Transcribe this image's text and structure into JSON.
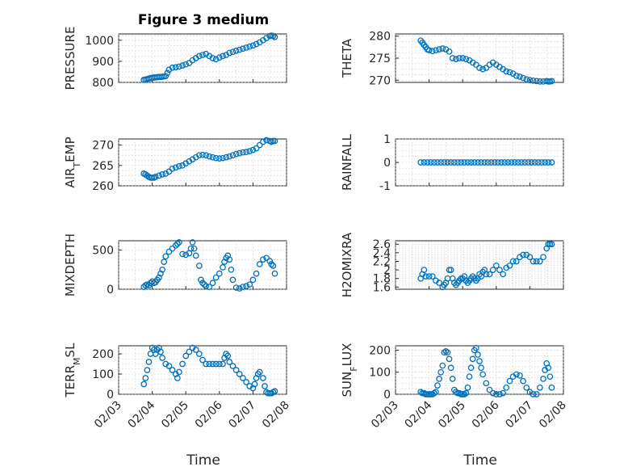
{
  "figure": {
    "title": "Figure 3 medium",
    "xlabel": "Time",
    "marker_color": "#0072BD",
    "x_ticks": [
      "02/03",
      "02/04",
      "02/05",
      "02/06",
      "02/07",
      "02/08"
    ]
  },
  "chart_data": [
    {
      "type": "scatter",
      "ylabel": "PRESSURE",
      "ylabel_sub": "",
      "xlim": [
        0,
        5
      ],
      "ylim": [
        800,
        1030
      ],
      "yticks": [
        800,
        900,
        1000
      ],
      "title": "Figure 3 medium",
      "x": [
        0.75,
        0.8,
        0.85,
        0.9,
        0.95,
        1.0,
        1.05,
        1.1,
        1.15,
        1.2,
        1.25,
        1.3,
        1.35,
        1.4,
        1.45,
        1.5,
        1.6,
        1.7,
        1.8,
        1.9,
        2.0,
        2.1,
        2.2,
        2.3,
        2.4,
        2.5,
        2.6,
        2.7,
        2.8,
        2.9,
        3.0,
        3.1,
        3.2,
        3.3,
        3.4,
        3.5,
        3.6,
        3.7,
        3.8,
        3.9,
        4.0,
        4.1,
        4.2,
        4.3,
        4.4,
        4.5,
        4.55,
        4.6,
        4.65
      ],
      "y": [
        812,
        814,
        816,
        818,
        820,
        822,
        823,
        824,
        825,
        826,
        826,
        827,
        828,
        830,
        845,
        860,
        870,
        872,
        875,
        880,
        885,
        892,
        905,
        915,
        925,
        930,
        935,
        925,
        915,
        910,
        918,
        925,
        930,
        940,
        945,
        950,
        955,
        960,
        965,
        970,
        975,
        982,
        990,
        1000,
        1010,
        1020,
        1022,
        1020,
        1015
      ]
    },
    {
      "type": "scatter",
      "ylabel": "THETA",
      "ylabel_sub": "",
      "xlim": [
        0,
        5
      ],
      "ylim": [
        269.5,
        280.5
      ],
      "yticks": [
        270,
        275,
        280
      ],
      "x": [
        0.75,
        0.8,
        0.85,
        0.9,
        0.95,
        1.0,
        1.1,
        1.2,
        1.3,
        1.4,
        1.5,
        1.6,
        1.7,
        1.8,
        1.9,
        2.0,
        2.1,
        2.2,
        2.3,
        2.4,
        2.5,
        2.6,
        2.7,
        2.8,
        2.9,
        3.0,
        3.1,
        3.2,
        3.3,
        3.4,
        3.5,
        3.6,
        3.7,
        3.8,
        3.9,
        4.0,
        4.1,
        4.2,
        4.3,
        4.4,
        4.5,
        4.55,
        4.6,
        4.65
      ],
      "y": [
        279,
        278.5,
        278,
        277.5,
        277,
        276.8,
        276.6,
        276.8,
        277,
        277.2,
        277,
        276.5,
        275,
        274.8,
        275,
        275,
        274.8,
        274.5,
        274,
        273.5,
        272.8,
        272.5,
        272.8,
        273.5,
        274,
        273.5,
        273,
        272.5,
        272,
        271.8,
        271.5,
        271,
        270.8,
        270.5,
        270.2,
        270,
        269.9,
        269.8,
        269.7,
        269.7,
        269.8,
        269.7,
        269.7,
        269.8
      ]
    },
    {
      "type": "scatter",
      "ylabel": "AIR",
      "ylabel_sub": "T",
      "ylabel_rest": "EMP",
      "xlim": [
        0,
        5
      ],
      "ylim": [
        260,
        271.5
      ],
      "yticks": [
        260,
        265,
        270
      ],
      "x": [
        0.75,
        0.8,
        0.85,
        0.9,
        0.95,
        1.0,
        1.05,
        1.1,
        1.2,
        1.3,
        1.4,
        1.5,
        1.6,
        1.7,
        1.8,
        1.9,
        2.0,
        2.1,
        2.2,
        2.3,
        2.4,
        2.5,
        2.6,
        2.7,
        2.8,
        2.9,
        3.0,
        3.1,
        3.2,
        3.3,
        3.4,
        3.5,
        3.6,
        3.7,
        3.8,
        3.9,
        4.0,
        4.1,
        4.2,
        4.3,
        4.4,
        4.5,
        4.55,
        4.6,
        4.65
      ],
      "y": [
        263,
        262.8,
        262.5,
        262.2,
        262,
        262,
        262,
        262.2,
        262.5,
        262.8,
        263,
        263.5,
        264.2,
        264.5,
        264.8,
        265,
        265.5,
        266,
        266.5,
        267,
        267.5,
        267.6,
        267.5,
        267.2,
        267,
        266.8,
        266.7,
        266.8,
        267,
        267.2,
        267.5,
        267.8,
        268,
        268.2,
        268.3,
        268.5,
        268.8,
        269.2,
        270,
        270.8,
        271.2,
        271,
        270.8,
        271,
        271
      ]
    },
    {
      "type": "scatter",
      "ylabel": "RAINFALL",
      "ylabel_sub": "",
      "xlim": [
        0,
        5
      ],
      "ylim": [
        -1,
        1
      ],
      "yticks": [
        -1,
        0,
        1
      ],
      "x": [
        0.75,
        0.85,
        0.95,
        1.05,
        1.15,
        1.25,
        1.35,
        1.45,
        1.55,
        1.65,
        1.75,
        1.85,
        1.95,
        2.05,
        2.15,
        2.25,
        2.35,
        2.45,
        2.55,
        2.65,
        2.75,
        2.85,
        2.95,
        3.05,
        3.15,
        3.25,
        3.35,
        3.45,
        3.55,
        3.65,
        3.75,
        3.85,
        3.95,
        4.05,
        4.15,
        4.25,
        4.35,
        4.45,
        4.55,
        4.65
      ],
      "y": [
        0,
        0,
        0,
        0,
        0,
        0,
        0,
        0,
        0,
        0,
        0,
        0,
        0,
        0,
        0,
        0,
        0,
        0,
        0,
        0,
        0,
        0,
        0,
        0,
        0,
        0,
        0,
        0,
        0,
        0,
        0,
        0,
        0,
        0,
        0,
        0,
        0,
        0,
        0,
        0
      ]
    },
    {
      "type": "scatter",
      "ylabel": "MIXDEPTH",
      "ylabel_sub": "",
      "xlim": [
        0,
        5
      ],
      "ylim": [
        0,
        620
      ],
      "yticks": [
        0,
        500
      ],
      "x": [
        0.75,
        0.8,
        0.85,
        0.9,
        0.95,
        1.0,
        1.05,
        1.1,
        1.15,
        1.2,
        1.25,
        1.3,
        1.35,
        1.4,
        1.5,
        1.6,
        1.7,
        1.75,
        1.8,
        1.9,
        2.0,
        2.1,
        2.15,
        2.2,
        2.25,
        2.3,
        2.4,
        2.45,
        2.5,
        2.55,
        2.6,
        2.7,
        2.8,
        2.9,
        3.0,
        3.1,
        3.15,
        3.2,
        3.25,
        3.3,
        3.35,
        3.4,
        3.5,
        3.6,
        3.7,
        3.8,
        3.9,
        4.0,
        4.1,
        4.2,
        4.3,
        4.4,
        4.5,
        4.55,
        4.6,
        4.65
      ],
      "y": [
        30,
        50,
        60,
        50,
        80,
        100,
        80,
        90,
        120,
        150,
        200,
        250,
        350,
        420,
        480,
        520,
        560,
        580,
        600,
        450,
        440,
        460,
        520,
        600,
        520,
        430,
        300,
        120,
        80,
        60,
        40,
        30,
        80,
        150,
        200,
        280,
        350,
        400,
        430,
        380,
        250,
        120,
        20,
        10,
        30,
        40,
        60,
        120,
        200,
        320,
        380,
        400,
        360,
        320,
        300,
        200
      ]
    },
    {
      "type": "scatter",
      "ylabel": "H2OMIXRA",
      "ylabel_sub": "",
      "xlim": [
        0,
        5
      ],
      "ylim": [
        1.55,
        2.68
      ],
      "yticks": [
        1.6,
        1.8,
        2,
        2.2,
        2.4,
        2.6
      ],
      "x": [
        0.75,
        0.8,
        0.85,
        0.9,
        1.0,
        1.1,
        1.2,
        1.3,
        1.4,
        1.45,
        1.5,
        1.55,
        1.6,
        1.65,
        1.7,
        1.75,
        1.8,
        1.85,
        1.9,
        1.95,
        2.0,
        2.05,
        2.1,
        2.15,
        2.2,
        2.25,
        2.3,
        2.35,
        2.4,
        2.45,
        2.5,
        2.55,
        2.6,
        2.65,
        2.7,
        2.8,
        2.9,
        3.0,
        3.1,
        3.2,
        3.3,
        3.4,
        3.5,
        3.6,
        3.7,
        3.8,
        3.9,
        4.0,
        4.1,
        4.2,
        4.3,
        4.4,
        4.5,
        4.55,
        4.6,
        4.65
      ],
      "y": [
        1.8,
        1.9,
        2.0,
        1.85,
        1.85,
        1.85,
        1.75,
        1.7,
        1.6,
        1.65,
        1.7,
        1.8,
        2.0,
        2.0,
        1.8,
        1.7,
        1.65,
        1.7,
        1.75,
        1.8,
        1.8,
        1.85,
        1.75,
        1.7,
        1.75,
        1.8,
        1.85,
        1.8,
        1.75,
        1.8,
        1.9,
        1.85,
        1.95,
        2.0,
        1.9,
        1.9,
        2.0,
        2.1,
        2.0,
        1.9,
        2.05,
        2.1,
        2.2,
        2.2,
        2.3,
        2.35,
        2.35,
        2.3,
        2.2,
        2.2,
        2.2,
        2.3,
        2.5,
        2.6,
        2.6,
        2.6
      ]
    },
    {
      "type": "scatter",
      "ylabel": "TERR",
      "ylabel_sub": "M",
      "ylabel_rest": "SL",
      "xlim": [
        0,
        5
      ],
      "ylim": [
        0,
        240
      ],
      "yticks": [
        0,
        100,
        200
      ],
      "x": [
        0.75,
        0.8,
        0.85,
        0.9,
        0.95,
        1.0,
        1.05,
        1.1,
        1.15,
        1.2,
        1.25,
        1.3,
        1.4,
        1.5,
        1.6,
        1.7,
        1.75,
        1.8,
        1.9,
        2.0,
        2.1,
        2.2,
        2.3,
        2.4,
        2.5,
        2.6,
        2.7,
        2.8,
        2.9,
        3.0,
        3.1,
        3.15,
        3.2,
        3.25,
        3.3,
        3.4,
        3.5,
        3.6,
        3.7,
        3.8,
        3.9,
        4.0,
        4.05,
        4.1,
        4.15,
        4.2,
        4.3,
        4.35,
        4.4,
        4.45,
        4.5,
        4.55,
        4.6,
        4.65
      ],
      "y": [
        50,
        80,
        120,
        160,
        200,
        230,
        220,
        200,
        220,
        230,
        210,
        180,
        150,
        140,
        120,
        100,
        80,
        110,
        150,
        190,
        210,
        230,
        220,
        200,
        170,
        150,
        150,
        150,
        150,
        150,
        150,
        180,
        200,
        190,
        160,
        140,
        120,
        100,
        80,
        60,
        40,
        30,
        50,
        80,
        100,
        110,
        80,
        40,
        10,
        5,
        5,
        5,
        10,
        15
      ]
    },
    {
      "type": "scatter",
      "ylabel": "SUN",
      "ylabel_sub": "F",
      "ylabel_rest": "LUX",
      "xlim": [
        0,
        5
      ],
      "ylim": [
        0,
        220
      ],
      "yticks": [
        0,
        100,
        200
      ],
      "x": [
        0.75,
        0.8,
        0.85,
        0.9,
        0.95,
        1.0,
        1.05,
        1.1,
        1.15,
        1.2,
        1.25,
        1.3,
        1.35,
        1.4,
        1.45,
        1.5,
        1.55,
        1.6,
        1.65,
        1.7,
        1.75,
        1.8,
        1.85,
        1.9,
        1.95,
        2.0,
        2.05,
        2.1,
        2.15,
        2.2,
        2.25,
        2.3,
        2.35,
        2.4,
        2.45,
        2.5,
        2.55,
        2.6,
        2.7,
        2.8,
        2.9,
        3.0,
        3.1,
        3.2,
        3.3,
        3.4,
        3.5,
        3.6,
        3.7,
        3.8,
        3.9,
        4.0,
        4.1,
        4.2,
        4.3,
        4.4,
        4.45,
        4.5,
        4.55,
        4.6,
        4.65
      ],
      "y": [
        10,
        5,
        5,
        0,
        0,
        0,
        0,
        0,
        5,
        10,
        40,
        70,
        100,
        130,
        190,
        195,
        190,
        160,
        120,
        70,
        20,
        10,
        5,
        5,
        0,
        0,
        0,
        5,
        30,
        80,
        120,
        160,
        200,
        210,
        180,
        150,
        120,
        90,
        50,
        20,
        5,
        0,
        0,
        5,
        30,
        60,
        80,
        90,
        85,
        60,
        30,
        10,
        0,
        0,
        30,
        70,
        110,
        140,
        120,
        80,
        30
      ]
    }
  ]
}
